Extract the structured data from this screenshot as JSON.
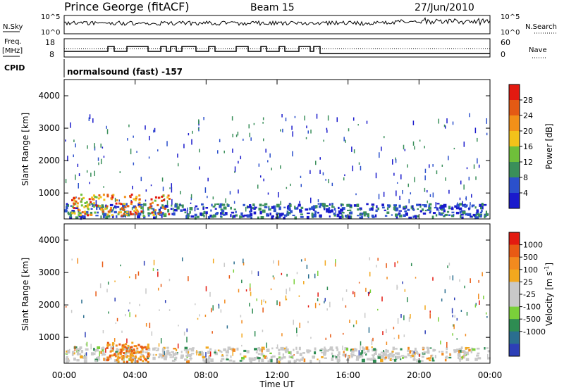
{
  "header": {
    "station": "Prince George (fitACF)",
    "beam": "Beam 15",
    "date": "27/Jun/2010"
  },
  "strip": {
    "nsky_label": "N.Sky",
    "nsearch_label": "N.Search",
    "nsky_ticks": [
      "10^5",
      "10^0"
    ],
    "nsearch_ticks": [
      "10^5",
      "10^0"
    ],
    "freq_label": "Freq.",
    "freq_unit": "[MHz]",
    "freq_ticks": [
      "18",
      "8"
    ],
    "nave_label": "Nave",
    "nave_ticks": [
      "60",
      "0"
    ],
    "cpid_label": "CPID",
    "cpid_text": "normalsound (fast) -157"
  },
  "colors": {
    "power_scale": [
      "#1a1acc",
      "#2b50cc",
      "#3a8f5a",
      "#6fbf3a",
      "#f2c21a",
      "#f29018",
      "#e45a14",
      "#e31a10"
    ],
    "velocity_scale": [
      "#2d3fb7",
      "#2a6e8f",
      "#2e8c52",
      "#7ad03a",
      "#c9c9c9",
      "#c9c9c9",
      "#f2a81e",
      "#f28a1e",
      "#e85a14",
      "#e31a10"
    ]
  },
  "chart_data": [
    {
      "type": "heatmap",
      "title": "Power [dB]",
      "xlabel": "Time UT",
      "ylabel": "Slant Range [km]",
      "x_ticks": [
        "00:00",
        "04:00",
        "08:00",
        "12:00",
        "16:00",
        "20:00",
        "00:00"
      ],
      "y_ticks": [
        "1000",
        "2000",
        "3000",
        "4000"
      ],
      "ylim": [
        200,
        4500
      ],
      "xlim_hours": [
        0,
        24
      ],
      "colorbar_label": "Power [dB]",
      "colorbar_ticks": [
        "4",
        "8",
        "12",
        "16",
        "20",
        "24",
        "28"
      ],
      "clim": [
        0,
        32
      ]
    },
    {
      "type": "heatmap",
      "title": "Velocity [m s^-1]",
      "xlabel": "Time UT",
      "ylabel": "Slant Range [km]",
      "x_ticks": [
        "00:00",
        "04:00",
        "08:00",
        "12:00",
        "16:00",
        "20:00",
        "00:00"
      ],
      "y_ticks": [
        "1000",
        "2000",
        "3000",
        "4000"
      ],
      "ylim": [
        200,
        4500
      ],
      "xlim_hours": [
        0,
        24
      ],
      "colorbar_label_main": "Velocity",
      "colorbar_label_unit": "[m s",
      "colorbar_label_sup": "-1",
      "colorbar_label_close": "]",
      "colorbar_ticks": [
        "1000",
        "500",
        "100",
        "25",
        "-25",
        "-100",
        "-500",
        "-1000"
      ]
    }
  ],
  "xaxis_title": "Time UT",
  "ylabel_text": "Slant Range [km]",
  "power_cb_title": "Power [dB]"
}
